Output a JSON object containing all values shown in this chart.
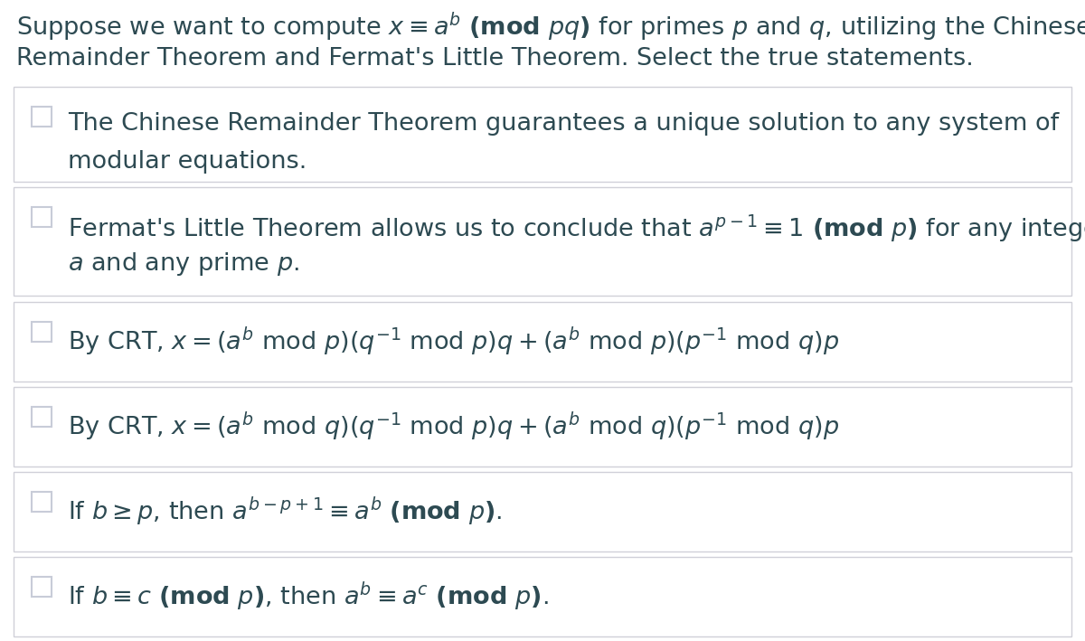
{
  "background_color": "#ffffff",
  "border_color": "#d0d0d8",
  "box_bg": "#ffffff",
  "text_color": "#2d4a52",
  "checkbox_color": "#c8ccd8",
  "figsize": [
    12.0,
    7.09
  ],
  "dpi": 100,
  "header_line1": "Suppose we want to compute $x \\equiv a^b\\ \\mathbf{(mod}\\ \\mathit{pq}\\mathbf{)}$ for primes $\\mathit{p}$ and $\\mathit{q}$, utilizing the Chinese",
  "header_line2": "Remainder Theorem and Fermat's Little Theorem. Select the true statements.",
  "items": [
    {
      "line1": "The Chinese Remainder Theorem guarantees a unique solution to any system of",
      "line2": "modular equations.",
      "fontsize": 19.5
    },
    {
      "line1": "Fermat's Little Theorem allows us to conclude that $a^{p-1} \\equiv 1\\ \\mathbf{(mod}\\ \\mathit{p}\\mathbf{)}$ for any integer",
      "line2": "$\\mathit{a}$ and any prime $\\mathit{p}$.",
      "fontsize": 19.5
    },
    {
      "line1": "By CRT, $x = (a^b\\ \\mathrm{mod}\\ p)(q^{-1}\\ \\mathrm{mod}\\ p)q + (a^b\\ \\mathrm{mod}\\ p)(p^{-1}\\ \\mathrm{mod}\\ q)p$",
      "line2": null,
      "fontsize": 19.5
    },
    {
      "line1": "By CRT, $x = (a^b\\ \\mathrm{mod}\\ q)(q^{-1}\\ \\mathrm{mod}\\ p)q + (a^b\\ \\mathrm{mod}\\ q)(p^{-1}\\ \\mathrm{mod}\\ q)p$",
      "line2": null,
      "fontsize": 19.5
    },
    {
      "line1": "If $b \\geq p$, then $a^{b-p+1} \\equiv a^b\\ \\mathbf{(mod}\\ \\mathit{p}\\mathbf{)}$.",
      "line2": null,
      "fontsize": 19.5
    },
    {
      "line1": "If $b \\equiv c\\ \\mathbf{(mod}\\ \\mathit{p}\\mathbf{)}$, then $a^b \\equiv a^c\\ \\mathbf{(mod}\\ \\mathit{p}\\mathbf{)}$.",
      "line2": null,
      "fontsize": 19.5
    }
  ]
}
